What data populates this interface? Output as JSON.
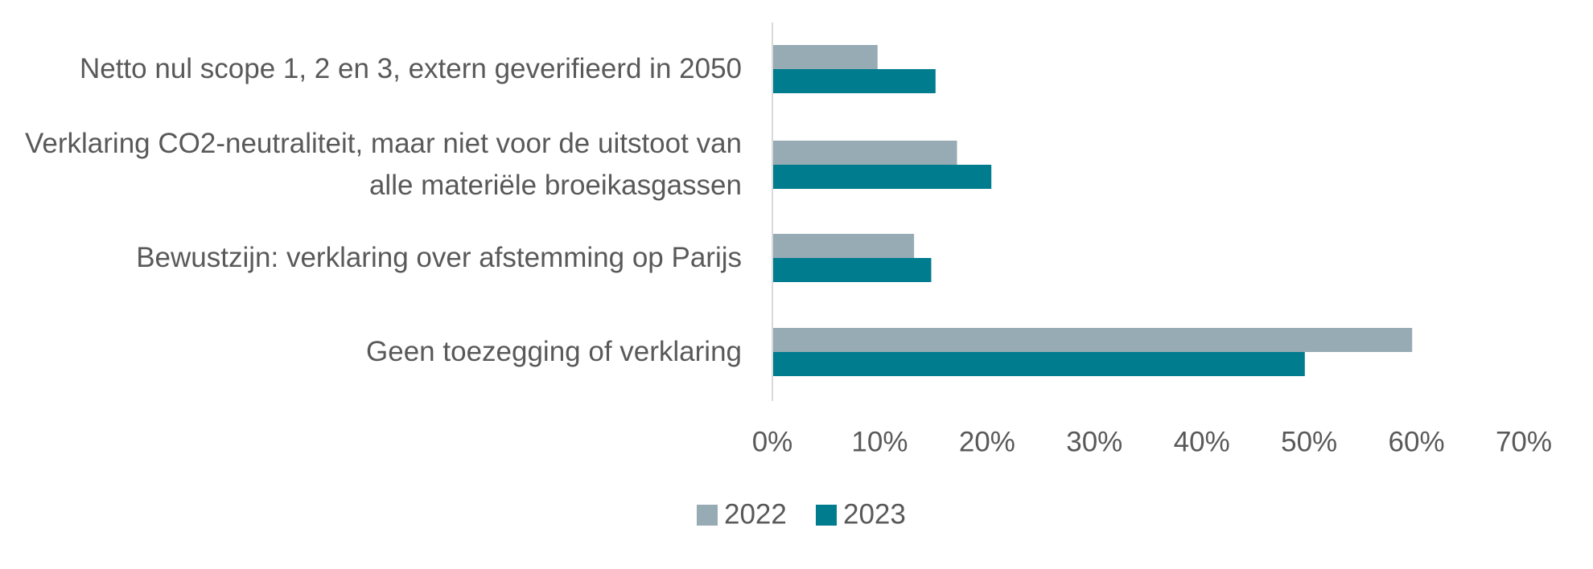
{
  "chart_data": {
    "type": "hbar",
    "categories": [
      "Netto nul scope 1, 2 en 3, extern geverifieerd in 2050",
      "Verklaring CO2-neutraliteit, maar niet voor de uitstoot van alle materiële broeikasgassen",
      "Bewustzijn: verklaring over afstemming op Parijs",
      "Geen toezegging of verklaring"
    ],
    "series": [
      {
        "name": "2022",
        "color": "#97abb5",
        "values": [
          9.8,
          17.2,
          13.2,
          59.6
        ]
      },
      {
        "name": "2023",
        "color": "#007c8f",
        "values": [
          15.2,
          20.4,
          14.8,
          49.6
        ]
      }
    ],
    "xlim": [
      0,
      70
    ],
    "xticks": [
      {
        "value": 0,
        "label": "0%"
      },
      {
        "value": 10,
        "label": "10%"
      },
      {
        "value": 20,
        "label": "20%"
      },
      {
        "value": 30,
        "label": "30%"
      },
      {
        "value": 40,
        "label": "40%"
      },
      {
        "value": 50,
        "label": "50%"
      },
      {
        "value": 60,
        "label": "60%"
      },
      {
        "value": 70,
        "label": "70%"
      }
    ],
    "legend": "bottom"
  }
}
